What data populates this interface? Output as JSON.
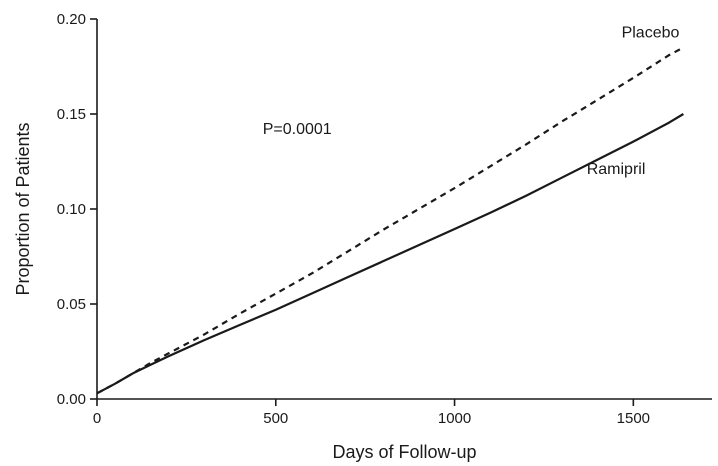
{
  "chart_data": {
    "type": "line",
    "title": "",
    "xlabel": "Days of Follow-up",
    "ylabel": "Proportion of Patients",
    "xlim": [
      0,
      1720
    ],
    "ylim": [
      0,
      0.2
    ],
    "x_ticks": [
      {
        "value": 0,
        "label": "0"
      },
      {
        "value": 500,
        "label": "500"
      },
      {
        "value": 1000,
        "label": "1000"
      },
      {
        "value": 1500,
        "label": "1500"
      }
    ],
    "y_ticks": [
      {
        "value": 0,
        "label": "0.00"
      },
      {
        "value": 0.05,
        "label": "0.05"
      },
      {
        "value": 0.1,
        "label": "0.10"
      },
      {
        "value": 0.15,
        "label": "0.15"
      },
      {
        "value": 0.2,
        "label": "0.20"
      }
    ],
    "grid": false,
    "legend": "none",
    "series": [
      {
        "name": "Placebo",
        "line_style": "dashed",
        "color": "#1a1a1a",
        "x": [
          0,
          50,
          100,
          150,
          200,
          300,
          400,
          500,
          600,
          700,
          800,
          900,
          1000,
          1100,
          1200,
          1300,
          1400,
          1500,
          1600,
          1640
        ],
        "y": [
          0.003,
          0.008,
          0.0135,
          0.019,
          0.024,
          0.034,
          0.045,
          0.0555,
          0.066,
          0.0775,
          0.089,
          0.1,
          0.111,
          0.1225,
          0.134,
          0.146,
          0.1575,
          0.169,
          0.181,
          0.185
        ]
      },
      {
        "name": "Ramipril",
        "line_style": "solid",
        "color": "#1a1a1a",
        "x": [
          0,
          50,
          100,
          150,
          200,
          300,
          400,
          500,
          600,
          700,
          800,
          900,
          1000,
          1100,
          1200,
          1300,
          1400,
          1500,
          1600,
          1640
        ],
        "y": [
          0.003,
          0.008,
          0.0135,
          0.018,
          0.0225,
          0.031,
          0.039,
          0.047,
          0.0555,
          0.064,
          0.0725,
          0.081,
          0.0895,
          0.098,
          0.107,
          0.1165,
          0.126,
          0.1355,
          0.1455,
          0.15
        ]
      }
    ],
    "annotations": [
      {
        "text": "P=0.0001",
        "x": 560,
        "y": 0.142
      }
    ]
  }
}
